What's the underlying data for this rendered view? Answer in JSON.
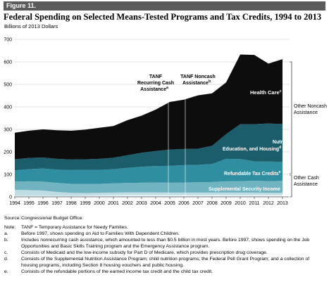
{
  "figure_label": "Figure 11.",
  "title": "Federal Spending on Selected Means-Tested Programs and Tax Credits, 1994 to 2013",
  "unit_label": "Billions of 2013 Dollars",
  "colors": {
    "health_care": "#0d0d0d",
    "nutrition": "#1c5d6c",
    "refundable_tax": "#2f8e9f",
    "ssi": "#72b3c1",
    "tanf_recurring": "#bedde3",
    "tanf_noncash": "#e4f0f2",
    "header_bar": "#5b5b5b"
  },
  "chart_data": {
    "type": "area",
    "stacked": true,
    "title": "Federal Spending on Selected Means-Tested Programs and Tax Credits, 1994 to 2013",
    "ylabel": "Billions of 2013 Dollars",
    "ylim": [
      0,
      700
    ],
    "yticks": [
      0,
      100,
      200,
      300,
      400,
      500,
      600,
      700
    ],
    "x": [
      1994,
      1995,
      1996,
      1997,
      1998,
      1999,
      2000,
      2001,
      2002,
      2003,
      2004,
      2005,
      2006,
      2007,
      2008,
      2009,
      2010,
      2011,
      2012,
      2013
    ],
    "series": [
      {
        "name": "TANF Noncash Assistance",
        "values": [
          5,
          5,
          5,
          5,
          5,
          6,
          7,
          8,
          9,
          9,
          9,
          9,
          9,
          9,
          9,
          9,
          9,
          9,
          9,
          9
        ]
      },
      {
        "name": "TANF Recurring Cash Assistance",
        "values": [
          26,
          25,
          23,
          17,
          13,
          11,
          11,
          11,
          11,
          11,
          11,
          10,
          10,
          10,
          10,
          10,
          10,
          10,
          9,
          9
        ]
      },
      {
        "name": "Supplemental Security Income",
        "values": [
          37,
          39,
          40,
          40,
          40,
          41,
          40,
          41,
          42,
          43,
          44,
          44,
          45,
          46,
          47,
          50,
          51,
          53,
          52,
          53
        ]
      },
      {
        "name": "Refundable Tax Credits",
        "values": [
          50,
          54,
          58,
          59,
          61,
          62,
          62,
          63,
          67,
          71,
          73,
          75,
          77,
          77,
          80,
          100,
          98,
          86,
          87,
          85
        ]
      },
      {
        "name": "Nutrition, Education, and Housing",
        "values": [
          49,
          50,
          49,
          48,
          47,
          47,
          49,
          51,
          56,
          62,
          67,
          72,
          72,
          72,
          81,
          110,
          155,
          165,
          169,
          168
        ]
      },
      {
        "name": "Health Care",
        "values": [
          118,
          121,
          125,
          127,
          128,
          132,
          138,
          141,
          156,
          165,
          184,
          212,
          219,
          237,
          233,
          230,
          310,
          308,
          266,
          288
        ]
      }
    ],
    "group_labels": [
      "Other Noncash Assistance",
      "Other Cash Assistance"
    ],
    "annotations": [
      {
        "label": "TANF Recurring Cash Assistance",
        "superscript": "a",
        "x": 2005
      },
      {
        "label": "TANF Noncash Assistance",
        "superscript": "b",
        "x": 2006
      }
    ]
  },
  "labels": {
    "health_care": "Health Care",
    "health_care_sup": "c",
    "nutrition_l1": "Nutrition,",
    "nutrition_l2": "Education, and Housing",
    "nutrition_sup": "d",
    "refundable": "Refundable Tax Credits",
    "refundable_sup": "e",
    "ssi": "Supplemental Security Income",
    "tanf_rec_l1": "TANF",
    "tanf_rec_l2": "Recurring Cash",
    "tanf_rec_l3": "Assistance",
    "tanf_rec_sup": "a",
    "tanf_non_l1": "TANF Noncash",
    "tanf_non_l2": "Assistance",
    "tanf_non_sup": "b",
    "other_noncash_l1": "Other Noncash",
    "other_noncash_l2": "Assistance",
    "other_cash_l1": "Other Cash",
    "other_cash_l2": "Assistance"
  },
  "notes": {
    "source_key": "Source:",
    "source_text": "Congressional Budget Office.",
    "note_key": "Note:",
    "note_text": "TANF = Temporary Assistance for Needy Families.",
    "a_key": "a.",
    "a_text": "Before 1997, shows spending on Aid to Families With Dependent Children.",
    "b_key": "b.",
    "b_text": "Includes nonrecurring cash assistance, which amounted to less than $0.5 billion in most years. Before 1997, shows spending on the Job Opportunities and Basic Skills Training program and the Emergency Assistance program.",
    "c_key": "c.",
    "c_text": "Consists of Medicaid and the low-income subsidy for Part D of Medicare, which provides prescription drug coverage.",
    "d_key": "d.",
    "d_text": "Consists of the Supplemental Nutrition Assistance Program; child nutrition programs; the Federal Pell Grant Program; and a collection of housing programs, including Section 8 housing vouchers and public housing.",
    "e_key": "e.",
    "e_text": "Consists of the refundable portions of the earned income tax credit and the child tax credit."
  }
}
